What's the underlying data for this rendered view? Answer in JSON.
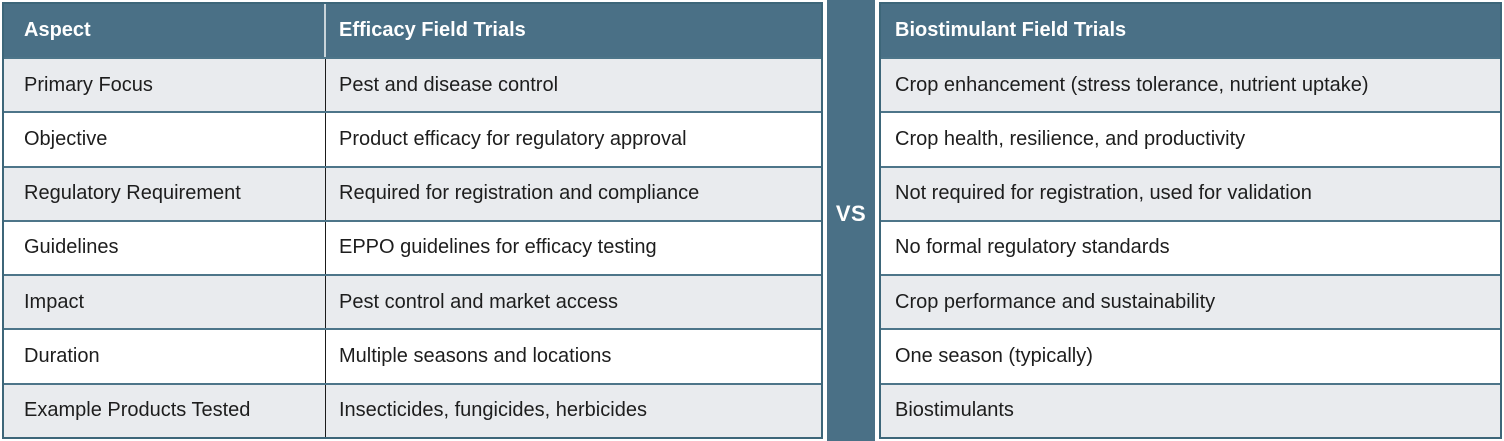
{
  "divider": {
    "label": "VS"
  },
  "colors": {
    "header_bg": "#4a7086",
    "divider_bg": "#4a7086",
    "row_alt_bg": "#e9ebee",
    "row_bg": "#ffffff",
    "outer_border": "#3d6679",
    "row_separator": "#4d7589",
    "header_text": "#ffffff",
    "body_text": "#1d1d1d"
  },
  "left_table": {
    "headers": [
      "Aspect",
      "Efficacy Field Trials"
    ],
    "rows": [
      {
        "aspect": "Primary Focus",
        "value": "Pest and disease control"
      },
      {
        "aspect": "Objective",
        "value": "Product efficacy for regulatory approval"
      },
      {
        "aspect": "Regulatory Requirement",
        "value": "Required for registration and compliance"
      },
      {
        "aspect": "Guidelines",
        "value": "EPPO guidelines for efficacy testing"
      },
      {
        "aspect": "Impact",
        "value": "Pest control and market access"
      },
      {
        "aspect": "Duration",
        "value": "Multiple seasons and locations"
      },
      {
        "aspect": "Example Products Tested",
        "value": "Insecticides, fungicides, herbicides"
      }
    ]
  },
  "right_table": {
    "header": "Biostimulant Field Trials",
    "rows": [
      "Crop enhancement (stress tolerance, nutrient uptake)",
      "Crop health, resilience, and productivity",
      "Not required for registration, used for validation",
      "No formal regulatory standards",
      "Crop performance and sustainability",
      "One season (typically)",
      "Biostimulants"
    ]
  },
  "chart_data": {
    "type": "table",
    "title": "Efficacy Field Trials vs Biostimulant Field Trials",
    "columns": [
      "Aspect",
      "Efficacy Field Trials",
      "Biostimulant Field Trials"
    ],
    "rows": [
      [
        "Primary Focus",
        "Pest and disease control",
        "Crop enhancement (stress tolerance, nutrient uptake)"
      ],
      [
        "Objective",
        "Product efficacy for regulatory approval",
        "Crop health, resilience, and productivity"
      ],
      [
        "Regulatory Requirement",
        "Required for registration and compliance",
        "Not required for registration, used for validation"
      ],
      [
        "Guidelines",
        "EPPO guidelines for efficacy testing",
        "No formal regulatory standards"
      ],
      [
        "Impact",
        "Pest control and market access",
        "Crop performance and sustainability"
      ],
      [
        "Duration",
        "Multiple seasons and locations",
        "One season (typically)"
      ],
      [
        "Example Products Tested",
        "Insecticides, fungicides, herbicides",
        "Biostimulants"
      ]
    ]
  }
}
